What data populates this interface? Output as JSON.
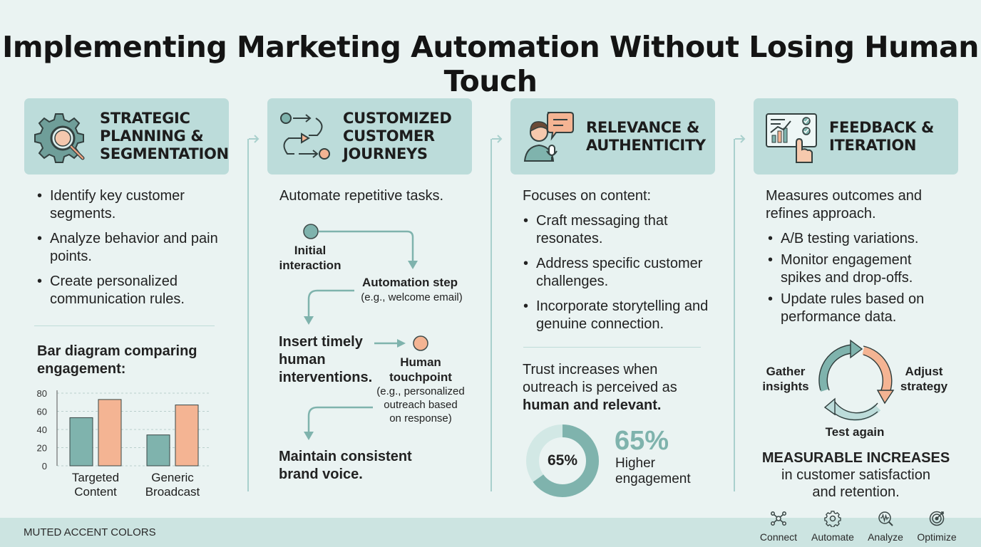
{
  "title": "Implementing Marketing Automation Without Losing Human Touch",
  "columns": [
    {
      "heading": [
        "STRATEGIC",
        "PLANNING &",
        "SEGMENTATION"
      ],
      "icon": "gear-magnifier-icon",
      "bullets": [
        "Identify key customer segments.",
        "Analyze behavior and pain points.",
        "Create personalized communication rules."
      ],
      "chart_title": "Bar diagram comparing engagement:"
    },
    {
      "heading": [
        "CUSTOMIZED",
        "CUSTOMER",
        "JOURNEYS"
      ],
      "icon": "journey-flow-icon",
      "intro": "Automate repetitive tasks.",
      "flow": {
        "initial": [
          "Initial",
          "interaction"
        ],
        "automation": "Automation step",
        "automation_note": "(e.g., welcome email)",
        "insert": [
          "Insert timely",
          "human",
          "interventions."
        ],
        "human": [
          "Human",
          "touchpoint"
        ],
        "human_note": [
          "(e.g., personalized",
          "outreach based",
          "on response)"
        ],
        "maintain": [
          "Maintain consistent",
          "brand voice."
        ]
      }
    },
    {
      "heading": [
        "RELEVANCE &",
        "AUTHENTICITY"
      ],
      "icon": "speaker-chat-icon",
      "intro": "Focuses on content:",
      "bullets": [
        "Craft messaging that resonates.",
        "Address specific customer challenges.",
        "Incorporate storytelling and genuine connection."
      ],
      "trust_lines": [
        "Trust increases when",
        "outreach is perceived as"
      ],
      "trust_bold": "human and relevant.",
      "donut_label": "65%",
      "stat_value": "65%",
      "stat_lines": [
        "Higher",
        "engagement"
      ]
    },
    {
      "heading": [
        "FEEDBACK &",
        "ITERATION"
      ],
      "icon": "dashboard-touch-icon",
      "intro": [
        "Measures outcomes and",
        "refines approach."
      ],
      "bullets": [
        "A/B testing variations.",
        "Monitor engagement spikes and drop-offs.",
        "Update rules based on performance data."
      ],
      "cycle": {
        "left": [
          "Gather",
          "insights"
        ],
        "right": [
          "Adjust",
          "strategy"
        ],
        "bottom": "Test again"
      },
      "result_bold": "MEASURABLE INCREASES",
      "result_lines": [
        "in customer satisfaction",
        "and retention."
      ]
    }
  ],
  "chart_data": {
    "type": "bar",
    "categories": [
      "Targeted Content",
      "Generic Broadcast"
    ],
    "category_lines": [
      [
        "Targeted",
        "Content"
      ],
      [
        "Generic",
        "Broadcast"
      ]
    ],
    "series": [
      {
        "values": [
          53,
          34
        ],
        "color": "#7fb3ad"
      },
      {
        "values": [
          73,
          67
        ],
        "color": "#f4b493"
      }
    ],
    "ylim": [
      0,
      80
    ],
    "yticks": [
      0,
      20,
      40,
      60,
      80
    ],
    "grid": true
  },
  "footer": {
    "label": "MUTED ACCENT COLORS",
    "items": [
      {
        "label": "Connect",
        "icon": "network-icon"
      },
      {
        "label": "Automate",
        "icon": "gear-icon"
      },
      {
        "label": "Analyze",
        "icon": "waveform-magnifier-icon"
      },
      {
        "label": "Optimize",
        "icon": "target-icon"
      }
    ]
  },
  "colors": {
    "background": "#eaf3f2",
    "header_fill": "#bcdcda",
    "teal": "#7fb3ad",
    "peach": "#f4b493",
    "footer": "#cce4e1"
  }
}
